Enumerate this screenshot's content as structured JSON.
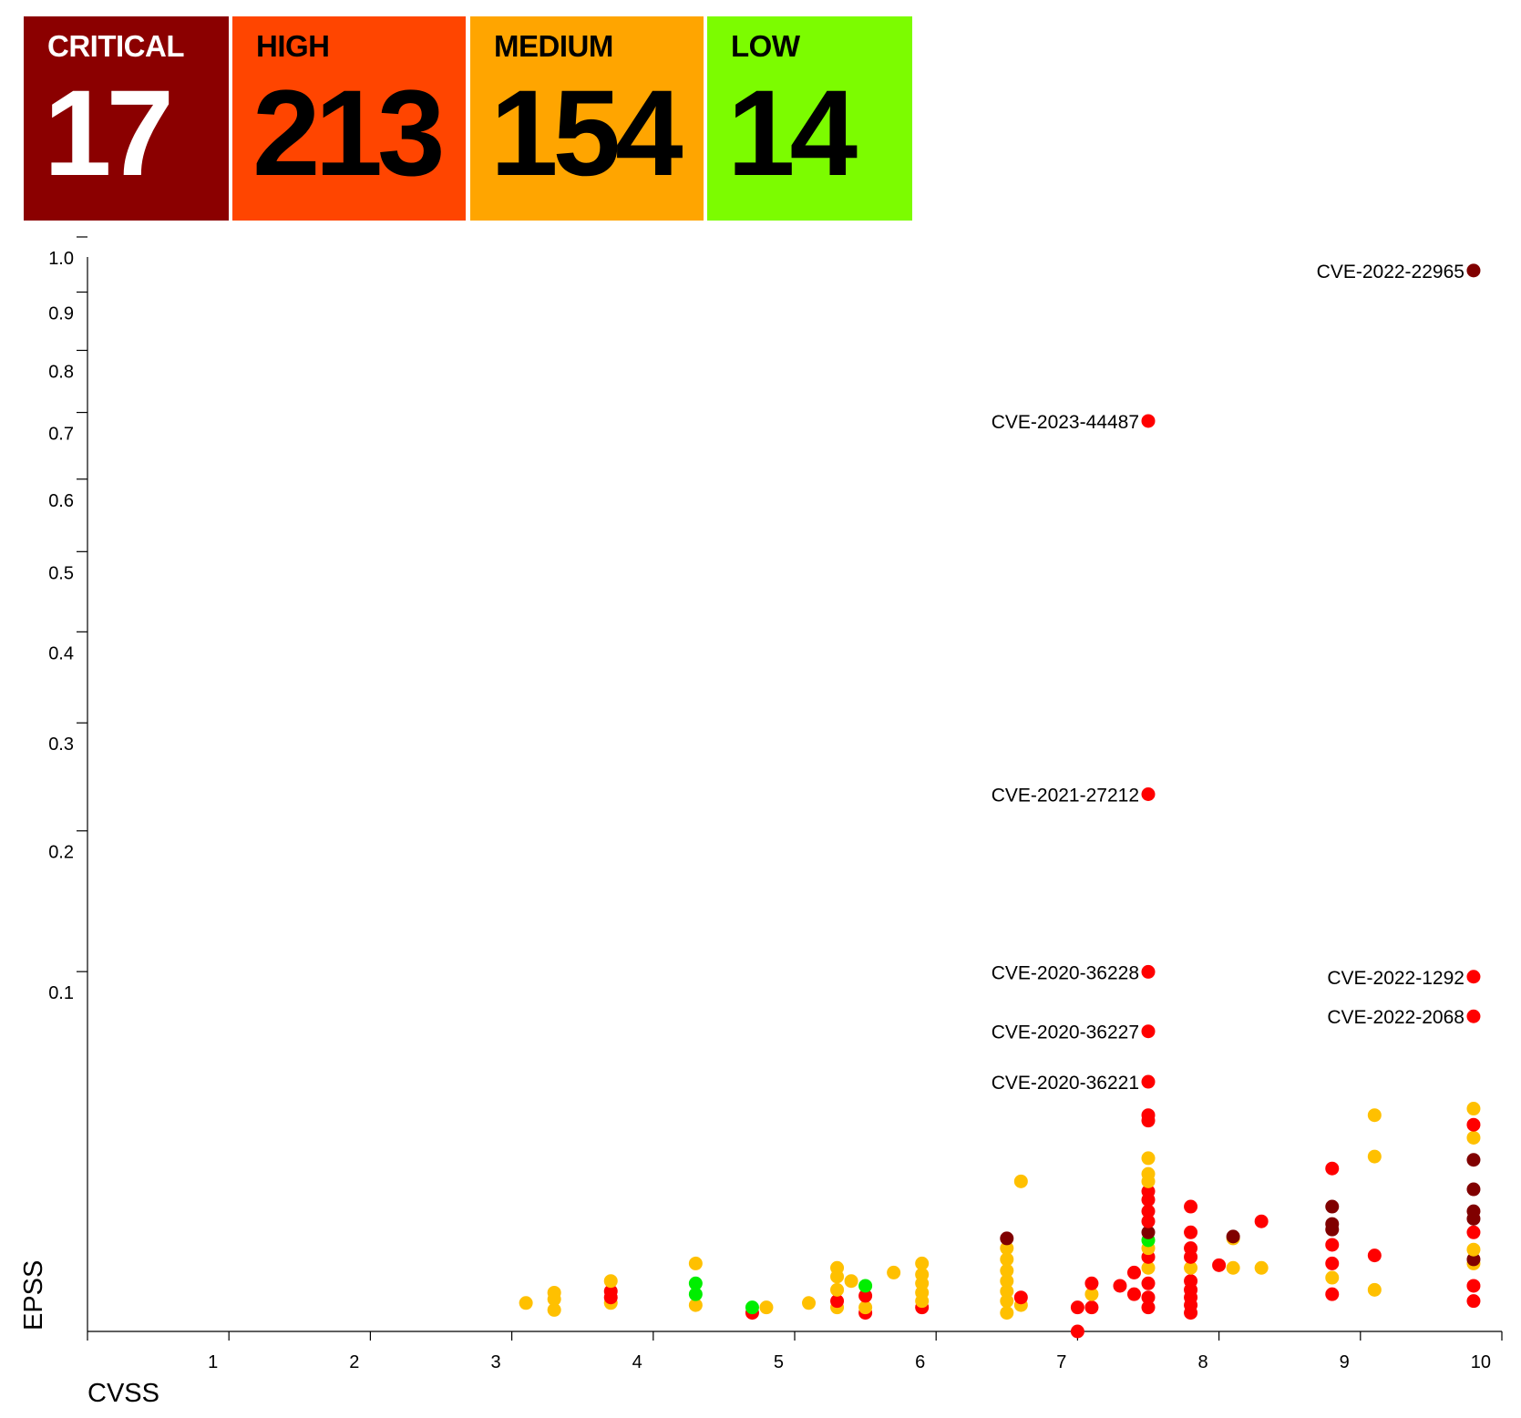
{
  "tiles": [
    {
      "label": "CRITICAL",
      "count": "17",
      "bg": "#8b0000",
      "fg": "#ffffff"
    },
    {
      "label": "HIGH",
      "count": "213",
      "bg": "#ff4500",
      "fg": "#000000"
    },
    {
      "label": "MEDIUM",
      "count": "154",
      "bg": "#ffa500",
      "fg": "#000000"
    },
    {
      "label": "LOW",
      "count": "14",
      "bg": "#7cfc00",
      "fg": "#000000"
    }
  ],
  "chart_data": {
    "type": "scatter",
    "xlabel": "CVSS",
    "ylabel": "EPSS",
    "xlim": [
      0,
      10
    ],
    "ylim": [
      0,
      1
    ],
    "y_scale": "sqrt",
    "x_ticks": [
      "1",
      "2",
      "3",
      "4",
      "5",
      "6",
      "7",
      "8",
      "9",
      "10"
    ],
    "y_ticks": [
      "0.1",
      "0.2",
      "0.3",
      "0.4",
      "0.5",
      "0.6",
      "0.7",
      "0.8",
      "0.9",
      "1.0"
    ],
    "grid": false,
    "colors": {
      "critical": "#800000",
      "high": "#ff0000",
      "medium": "#ffc000",
      "low": "#00ee00"
    },
    "labeled_points": [
      {
        "label": "CVE-2022-22965",
        "x": 9.8,
        "y": 0.975,
        "severity": "critical",
        "side": "left"
      },
      {
        "label": "CVE-2023-44487",
        "x": 7.5,
        "y": 0.718,
        "severity": "high",
        "side": "left"
      },
      {
        "label": "CVE-2021-27212",
        "x": 7.5,
        "y": 0.25,
        "severity": "high",
        "side": "left"
      },
      {
        "label": "CVE-2020-36228",
        "x": 7.5,
        "y": 0.112,
        "severity": "high",
        "side": "left"
      },
      {
        "label": "CVE-2020-36227",
        "x": 7.5,
        "y": 0.078,
        "severity": "high",
        "side": "left"
      },
      {
        "label": "CVE-2022-1292",
        "x": 9.8,
        "y": 0.109,
        "severity": "high",
        "side": "left"
      },
      {
        "label": "CVE-2022-2068",
        "x": 9.8,
        "y": 0.086,
        "severity": "high",
        "side": "left"
      },
      {
        "label": "CVE-2020-36221",
        "x": 7.5,
        "y": 0.054,
        "severity": "high",
        "side": "left"
      }
    ],
    "points": [
      [
        3.1,
        0.0007,
        "medium"
      ],
      [
        3.3,
        0.0004,
        "medium"
      ],
      [
        3.3,
        0.0009,
        "medium"
      ],
      [
        3.3,
        0.0013,
        "medium"
      ],
      [
        3.7,
        0.0007,
        "medium"
      ],
      [
        3.7,
        0.0014,
        "high"
      ],
      [
        3.7,
        0.0022,
        "medium"
      ],
      [
        3.7,
        0.001,
        "high"
      ],
      [
        4.3,
        0.0006,
        "medium"
      ],
      [
        4.3,
        0.0012,
        "low"
      ],
      [
        4.3,
        0.002,
        "low"
      ],
      [
        4.3,
        0.004,
        "medium"
      ],
      [
        4.7,
        0.0003,
        "high"
      ],
      [
        4.7,
        0.0005,
        "low"
      ],
      [
        4.8,
        0.0005,
        "medium"
      ],
      [
        5.1,
        0.0007,
        "medium"
      ],
      [
        5.3,
        0.0005,
        "medium"
      ],
      [
        5.3,
        0.0008,
        "high"
      ],
      [
        5.3,
        0.0015,
        "medium"
      ],
      [
        5.3,
        0.0026,
        "medium"
      ],
      [
        5.3,
        0.0035,
        "medium"
      ],
      [
        5.4,
        0.0022,
        "medium"
      ],
      [
        5.5,
        0.0003,
        "high"
      ],
      [
        5.5,
        0.0005,
        "medium"
      ],
      [
        5.5,
        0.0011,
        "high"
      ],
      [
        5.5,
        0.0018,
        "low"
      ],
      [
        5.7,
        0.003,
        "medium"
      ],
      [
        5.9,
        0.0005,
        "high"
      ],
      [
        5.9,
        0.0008,
        "medium"
      ],
      [
        5.9,
        0.0013,
        "medium"
      ],
      [
        5.9,
        0.002,
        "medium"
      ],
      [
        5.9,
        0.0028,
        "medium"
      ],
      [
        5.9,
        0.004,
        "medium"
      ],
      [
        6.5,
        0.0003,
        "medium"
      ],
      [
        6.5,
        0.0008,
        "medium"
      ],
      [
        6.5,
        0.0014,
        "medium"
      ],
      [
        6.5,
        0.0022,
        "medium"
      ],
      [
        6.5,
        0.0032,
        "medium"
      ],
      [
        6.5,
        0.0045,
        "medium"
      ],
      [
        6.5,
        0.006,
        "medium"
      ],
      [
        6.5,
        0.0075,
        "critical"
      ],
      [
        6.6,
        0.0006,
        "medium"
      ],
      [
        6.6,
        0.001,
        "high"
      ],
      [
        6.6,
        0.0195,
        "medium"
      ],
      [
        7.0,
        0.0,
        "high"
      ],
      [
        7.0,
        0.0005,
        "high"
      ],
      [
        7.1,
        0.0005,
        "high"
      ],
      [
        7.1,
        0.0012,
        "medium"
      ],
      [
        7.1,
        0.002,
        "high"
      ],
      [
        7.3,
        0.0018,
        "high"
      ],
      [
        7.4,
        0.0012,
        "high"
      ],
      [
        7.4,
        0.003,
        "high"
      ],
      [
        7.5,
        0.0005,
        "high"
      ],
      [
        7.5,
        0.001,
        "high"
      ],
      [
        7.5,
        0.002,
        "high"
      ],
      [
        7.5,
        0.0035,
        "medium"
      ],
      [
        7.5,
        0.0048,
        "high"
      ],
      [
        7.5,
        0.006,
        "medium"
      ],
      [
        7.5,
        0.0072,
        "low"
      ],
      [
        7.5,
        0.0085,
        "critical"
      ],
      [
        7.5,
        0.0105,
        "high"
      ],
      [
        7.5,
        0.0125,
        "high"
      ],
      [
        7.5,
        0.015,
        "high"
      ],
      [
        7.5,
        0.017,
        "high"
      ],
      [
        7.5,
        0.0195,
        "medium"
      ],
      [
        7.5,
        0.0215,
        "medium"
      ],
      [
        7.5,
        0.026,
        "medium"
      ],
      [
        7.5,
        0.0385,
        "high"
      ],
      [
        7.5,
        0.0405,
        "high"
      ],
      [
        7.8,
        0.0003,
        "high"
      ],
      [
        7.8,
        0.0006,
        "high"
      ],
      [
        7.8,
        0.001,
        "high"
      ],
      [
        7.8,
        0.0015,
        "high"
      ],
      [
        7.8,
        0.0022,
        "high"
      ],
      [
        7.8,
        0.0035,
        "medium"
      ],
      [
        7.8,
        0.0048,
        "high"
      ],
      [
        7.8,
        0.006,
        "high"
      ],
      [
        7.8,
        0.0085,
        "high"
      ],
      [
        7.8,
        0.0135,
        "high"
      ],
      [
        8.0,
        0.0038,
        "high"
      ],
      [
        8.1,
        0.0035,
        "medium"
      ],
      [
        8.1,
        0.0075,
        "medium"
      ],
      [
        8.1,
        0.0078,
        "critical"
      ],
      [
        8.3,
        0.0035,
        "medium"
      ],
      [
        8.3,
        0.0105,
        "high"
      ],
      [
        8.8,
        0.0012,
        "high"
      ],
      [
        8.8,
        0.0025,
        "medium"
      ],
      [
        8.8,
        0.004,
        "high"
      ],
      [
        8.8,
        0.0065,
        "high"
      ],
      [
        8.8,
        0.009,
        "critical"
      ],
      [
        8.8,
        0.01,
        "critical"
      ],
      [
        8.8,
        0.0135,
        "critical"
      ],
      [
        8.8,
        0.023,
        "high"
      ],
      [
        9.1,
        0.0015,
        "medium"
      ],
      [
        9.1,
        0.005,
        "high"
      ],
      [
        9.1,
        0.0265,
        "medium"
      ],
      [
        9.1,
        0.0405,
        "medium"
      ],
      [
        9.8,
        0.0008,
        "high"
      ],
      [
        9.8,
        0.0018,
        "high"
      ],
      [
        9.8,
        0.004,
        "medium"
      ],
      [
        9.8,
        0.0045,
        "critical"
      ],
      [
        9.8,
        0.0058,
        "medium"
      ],
      [
        9.8,
        0.0085,
        "high"
      ],
      [
        9.8,
        0.011,
        "critical"
      ],
      [
        9.8,
        0.0125,
        "critical"
      ],
      [
        9.8,
        0.0175,
        "critical"
      ],
      [
        9.8,
        0.0255,
        "critical"
      ],
      [
        9.8,
        0.0325,
        "medium"
      ],
      [
        9.8,
        0.037,
        "high"
      ],
      [
        9.8,
        0.043,
        "medium"
      ]
    ]
  }
}
